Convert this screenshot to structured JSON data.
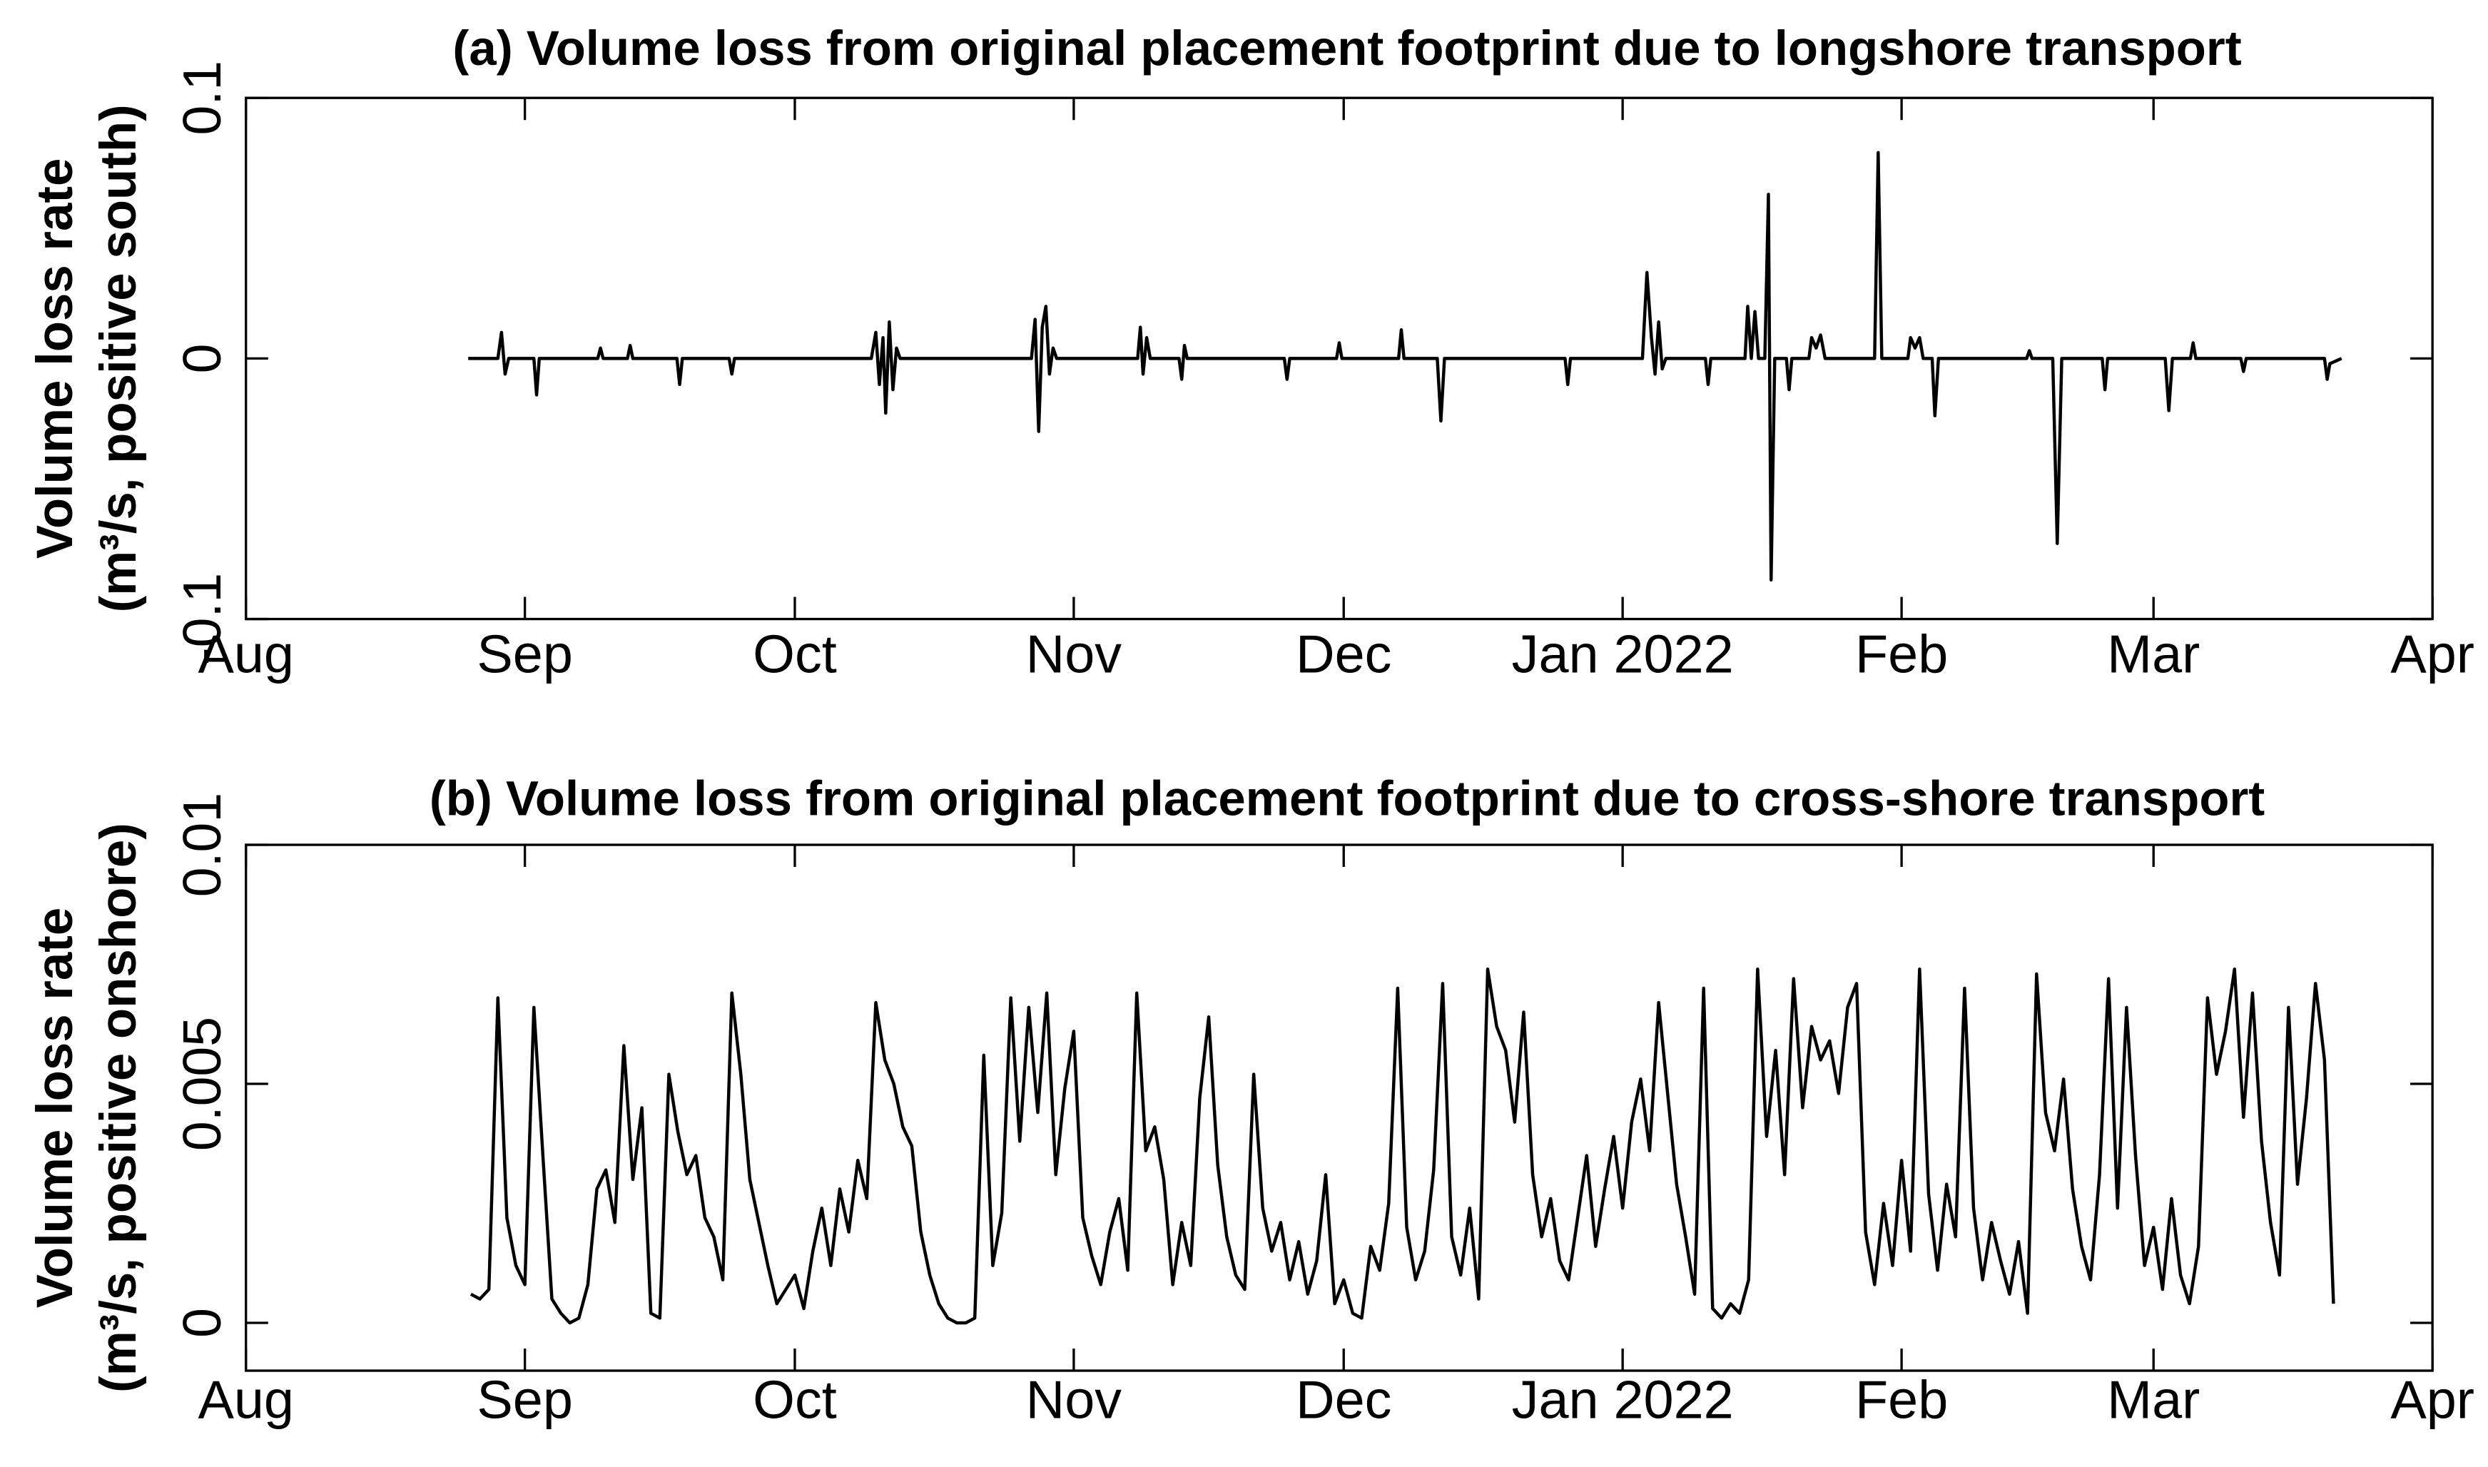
{
  "chart_data": [
    {
      "type": "line",
      "title": "(a) Volume loss from original placement footprint due to longshore transport",
      "ylabel": [
        "Volume loss rate",
        "(m³/s, positive south)"
      ],
      "color": "#000000",
      "xlim": [
        0,
        243
      ],
      "xticks": [
        {
          "value": 0,
          "label": "Aug"
        },
        {
          "value": 31,
          "label": "Sep"
        },
        {
          "value": 61,
          "label": "Oct"
        },
        {
          "value": 92,
          "label": "Nov"
        },
        {
          "value": 122,
          "label": "Dec"
        },
        {
          "value": 153,
          "label": "Jan 2022"
        },
        {
          "value": 184,
          "label": "Feb"
        },
        {
          "value": 212,
          "label": "Mar"
        },
        {
          "value": 243,
          "label": "Apr"
        }
      ],
      "ylim": [
        -0.1,
        0.1
      ],
      "yticks": [
        -0.1,
        0,
        0.1
      ],
      "x": [
        24.7,
        28.0,
        28.4,
        28.8,
        29.2,
        32.0,
        32.3,
        32.6,
        39.1,
        39.4,
        39.7,
        42.4,
        42.7,
        43.0,
        47.9,
        48.2,
        48.5,
        53.7,
        54,
        54.3,
        69.5,
        70,
        70.4,
        70.8,
        71.1,
        71.5,
        71.9,
        72.3,
        72.7,
        87.3,
        87.7,
        88.1,
        88.5,
        88.9,
        89.3,
        89.7,
        90.1,
        99.1,
        99.4,
        99.7,
        100.1,
        100.5,
        103.7,
        104,
        104.3,
        104.6,
        115.4,
        115.7,
        116,
        121.2,
        121.5,
        121.8,
        128.1,
        128.4,
        128.7,
        132.4,
        132.8,
        133.2,
        146.6,
        146.9,
        147.2,
        155.2,
        155.7,
        156.2,
        156.6,
        157.0,
        157.4,
        157.8,
        162.2,
        162.5,
        162.8,
        166.6,
        166.9,
        167.3,
        167.7,
        168.1,
        168.8,
        169.2,
        169.5,
        169.9,
        171.2,
        171.5,
        171.8,
        173.7,
        174,
        174.5,
        175,
        175.5,
        181.0,
        181.4,
        181.8,
        184.7,
        185,
        185.5,
        186,
        186.4,
        187.4,
        187.7,
        188.1,
        197.9,
        198.2,
        198.5,
        200.8,
        201.3,
        201.8,
        206.3,
        206.6,
        206.9,
        213.3,
        213.7,
        214.1,
        216.1,
        216.4,
        216.7,
        221.7,
        222,
        222.3,
        231.0,
        231.3,
        231.6,
        232.9
      ],
      "values": [
        0,
        0,
        0.01,
        -0.006,
        0,
        0,
        -0.014,
        0,
        0,
        0.004,
        0,
        0,
        0.005,
        0,
        0,
        -0.01,
        0,
        0,
        -0.006,
        0,
        0,
        0.01,
        -0.01,
        0.008,
        -0.021,
        0.014,
        -0.012,
        0.004,
        0,
        0,
        0.015,
        -0.028,
        0.012,
        0.02,
        -0.006,
        0.004,
        0,
        0,
        0.012,
        -0.006,
        0.008,
        0,
        0,
        -0.008,
        0.005,
        0,
        0,
        -0.008,
        0,
        0,
        0.006,
        0,
        0,
        0.011,
        0,
        0,
        -0.024,
        0,
        0,
        -0.01,
        0,
        0,
        0.033,
        0.008,
        -0.006,
        0.014,
        -0.004,
        0,
        0,
        -0.01,
        0,
        0,
        0.02,
        0,
        0.018,
        0,
        0,
        0.063,
        -0.085,
        0,
        0,
        -0.012,
        0,
        0,
        0.008,
        0.004,
        0.009,
        0,
        0,
        0.079,
        0,
        0,
        0.008,
        0.004,
        0.008,
        0,
        0,
        -0.022,
        0,
        0,
        0.003,
        0,
        0,
        -0.071,
        0,
        0,
        -0.012,
        0,
        0,
        -0.02,
        0,
        0,
        0.006,
        0,
        0,
        -0.005,
        0,
        0,
        -0.008,
        -0.002,
        0
      ]
    },
    {
      "type": "line",
      "title": "(b) Volume loss from original placement footprint due to cross-shore transport",
      "ylabel": [
        "Volume loss rate",
        "(m³/s, positive onshore)"
      ],
      "color": "#000000",
      "xlim": [
        0,
        243
      ],
      "xticks": [
        {
          "value": 0,
          "label": "Aug"
        },
        {
          "value": 31,
          "label": "Sep"
        },
        {
          "value": 61,
          "label": "Oct"
        },
        {
          "value": 92,
          "label": "Nov"
        },
        {
          "value": 122,
          "label": "Dec"
        },
        {
          "value": 153,
          "label": "Jan 2022"
        },
        {
          "value": 184,
          "label": "Feb"
        },
        {
          "value": 212,
          "label": "Mar"
        },
        {
          "value": 243,
          "label": "Apr"
        }
      ],
      "ylim": [
        -0.001,
        0.01
      ],
      "yticks": [
        0,
        0.005,
        0.01
      ],
      "x": [
        25,
        26,
        27,
        28,
        29,
        30,
        31,
        32,
        33,
        34,
        35,
        36,
        37,
        38,
        39,
        40,
        41,
        42,
        43,
        44,
        45,
        46,
        47,
        48,
        49,
        50,
        51,
        52,
        53,
        54,
        55,
        56,
        57,
        58,
        59,
        60,
        61,
        62,
        63,
        64,
        65,
        66,
        67,
        68,
        69,
        70,
        71,
        72,
        73,
        74,
        75,
        76,
        77,
        78,
        79,
        80,
        81,
        82,
        83,
        84,
        85,
        86,
        87,
        88,
        89,
        90,
        91,
        92,
        93,
        94,
        95,
        96,
        97,
        98,
        99,
        100,
        101,
        102,
        103,
        104,
        105,
        106,
        107,
        108,
        109,
        110,
        111,
        112,
        113,
        114,
        115,
        116,
        117,
        118,
        119,
        120,
        121,
        122,
        123,
        124,
        125,
        126,
        127,
        128,
        129,
        130,
        131,
        132,
        133,
        134,
        135,
        136,
        137,
        138,
        139,
        140,
        141,
        142,
        143,
        144,
        145,
        146,
        147,
        148,
        149,
        150,
        151,
        152,
        153,
        154,
        155,
        156,
        157,
        158,
        159,
        160,
        161,
        162,
        163,
        164,
        165,
        166,
        167,
        168,
        169,
        170,
        171,
        172,
        173,
        174,
        175,
        176,
        177,
        178,
        179,
        180,
        181,
        182,
        183,
        184,
        185,
        186,
        187,
        188,
        189,
        190,
        191,
        192,
        193,
        194,
        195,
        196,
        197,
        198,
        199,
        200,
        201,
        202,
        203,
        204,
        205,
        206,
        207,
        208,
        209,
        210,
        211,
        212,
        213,
        214,
        215,
        216,
        217,
        218,
        219,
        220,
        221,
        222,
        223,
        224,
        225,
        226,
        227,
        228,
        229,
        230,
        231,
        232
      ],
      "values": [
        0.0006,
        0.0005,
        0.0007,
        0.0068,
        0.0022,
        0.0012,
        0.0008,
        0.0066,
        0.0035,
        0.0005,
        0.0002,
        0.0,
        0.0001,
        0.0008,
        0.0028,
        0.0032,
        0.0021,
        0.0058,
        0.003,
        0.0045,
        0.0002,
        0.0001,
        0.0052,
        0.004,
        0.0031,
        0.0035,
        0.0022,
        0.0018,
        0.0009,
        0.0069,
        0.0052,
        0.003,
        0.0021,
        0.0012,
        0.0004,
        0.0007,
        0.001,
        0.0003,
        0.0015,
        0.0024,
        0.0012,
        0.0028,
        0.0019,
        0.0034,
        0.0026,
        0.0067,
        0.0055,
        0.005,
        0.0041,
        0.0037,
        0.0019,
        0.001,
        0.0004,
        0.0001,
        0.0,
        0.0,
        0.0001,
        0.0056,
        0.0012,
        0.0023,
        0.0068,
        0.0038,
        0.0066,
        0.0044,
        0.0069,
        0.0031,
        0.0049,
        0.0061,
        0.0022,
        0.0014,
        0.0008,
        0.0019,
        0.0026,
        0.0011,
        0.0069,
        0.0036,
        0.0041,
        0.003,
        0.0008,
        0.0021,
        0.0012,
        0.0047,
        0.0064,
        0.0033,
        0.0018,
        0.001,
        0.0007,
        0.0052,
        0.0024,
        0.0015,
        0.0021,
        0.0009,
        0.0017,
        0.0006,
        0.0013,
        0.0031,
        0.0004,
        0.0009,
        0.0002,
        0.0001,
        0.0016,
        0.0011,
        0.0025,
        0.007,
        0.002,
        0.0009,
        0.0015,
        0.0032,
        0.0071,
        0.0018,
        0.001,
        0.0024,
        0.0005,
        0.0074,
        0.0062,
        0.0057,
        0.0042,
        0.0065,
        0.0031,
        0.0018,
        0.0026,
        0.0013,
        0.0009,
        0.0022,
        0.0035,
        0.0016,
        0.0028,
        0.0039,
        0.0024,
        0.0042,
        0.0051,
        0.0036,
        0.0067,
        0.0048,
        0.0029,
        0.0018,
        0.0006,
        0.007,
        0.0003,
        0.0001,
        0.0004,
        0.0002,
        0.0009,
        0.0074,
        0.0039,
        0.0057,
        0.0031,
        0.0072,
        0.0045,
        0.0062,
        0.0055,
        0.0059,
        0.0048,
        0.0066,
        0.0071,
        0.0019,
        0.0008,
        0.0025,
        0.0012,
        0.0034,
        0.0015,
        0.0074,
        0.0027,
        0.0011,
        0.0029,
        0.0018,
        0.007,
        0.0024,
        0.0009,
        0.0021,
        0.0013,
        0.0006,
        0.0017,
        0.0002,
        0.0073,
        0.0044,
        0.0036,
        0.0051,
        0.0028,
        0.0016,
        0.0009,
        0.0031,
        0.0072,
        0.0024,
        0.0066,
        0.0035,
        0.0012,
        0.002,
        0.0007,
        0.0026,
        0.001,
        0.0004,
        0.0016,
        0.0068,
        0.0052,
        0.0061,
        0.0074,
        0.0043,
        0.0069,
        0.0038,
        0.0021,
        0.001,
        0.0066,
        0.0029,
        0.0047,
        0.0071,
        0.0055,
        0.0004
      ]
    }
  ]
}
